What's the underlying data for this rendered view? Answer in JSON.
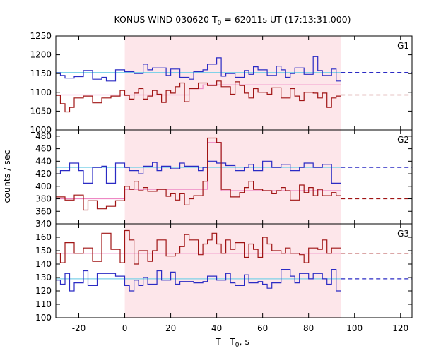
{
  "chart_data": {
    "type": "line",
    "title_main": "KONUS-WIND 030620 T",
    "title_sub": "0",
    "title_rest": " = 62011s UT (17:13:31.000)",
    "xlabel_main": "T - T",
    "xlabel_sub": "0",
    "xlabel_rest": ", s",
    "ylabel": "counts / sec",
    "xlim": [
      -30,
      125
    ],
    "xticks": [
      "-20",
      "0",
      "20",
      "40",
      "60",
      "80",
      "100",
      "120"
    ],
    "highlight_interval": [
      0,
      94
    ],
    "colors": {
      "blue": "#2b2bc4",
      "red": "#a01414",
      "cyan": "#7fd2e8",
      "pink": "#ee88c4",
      "shade": "#fde6ea"
    },
    "panels": [
      {
        "label": "G1",
        "ylim": [
          1000,
          1250
        ],
        "yticks": [
          "1250",
          "1200",
          "1150",
          "1100",
          "1050",
          "1000"
        ],
        "blue_level": 1153,
        "red_level": 1093,
        "blue_steps": {
          "x": [
            -30,
            -28,
            -26,
            -22,
            -18,
            -14,
            -10,
            -8,
            -4,
            0,
            4,
            8,
            10,
            12,
            18,
            20,
            24,
            28,
            30,
            34,
            36,
            40,
            42,
            44,
            48,
            52,
            54,
            56,
            58,
            62,
            66,
            68,
            70,
            72,
            74,
            78,
            82,
            84,
            86,
            90,
            92,
            94
          ],
          "y": [
            1152,
            1145,
            1138,
            1142,
            1158,
            1135,
            1140,
            1130,
            1160,
            1155,
            1150,
            1175,
            1160,
            1165,
            1145,
            1162,
            1140,
            1135,
            1155,
            1160,
            1175,
            1192,
            1143,
            1150,
            1140,
            1158,
            1148,
            1168,
            1160,
            1145,
            1170,
            1160,
            1140,
            1150,
            1165,
            1148,
            1195,
            1158,
            1145,
            1162,
            1130,
            1168
          ]
        },
        "red_steps": {
          "x": [
            -30,
            -28,
            -26,
            -24,
            -22,
            -18,
            -14,
            -10,
            -6,
            -2,
            0,
            2,
            4,
            6,
            8,
            10,
            12,
            14,
            16,
            18,
            20,
            22,
            24,
            26,
            28,
            32,
            36,
            40,
            42,
            46,
            48,
            50,
            52,
            54,
            56,
            58,
            62,
            64,
            68,
            72,
            74,
            76,
            78,
            82,
            84,
            86,
            88,
            90,
            92,
            94
          ],
          "y": [
            1092,
            1070,
            1048,
            1060,
            1085,
            1090,
            1072,
            1085,
            1090,
            1105,
            1092,
            1082,
            1098,
            1110,
            1082,
            1090,
            1105,
            1095,
            1073,
            1105,
            1098,
            1115,
            1125,
            1075,
            1110,
            1125,
            1118,
            1130,
            1115,
            1095,
            1128,
            1118,
            1098,
            1085,
            1110,
            1100,
            1095,
            1112,
            1085,
            1110,
            1090,
            1078,
            1100,
            1098,
            1085,
            1098,
            1060,
            1085,
            1090,
            1088
          ]
        },
        "pink_steps": {
          "x": [
            -30,
            0,
            28,
            34,
            94
          ],
          "y": [
            1093,
            1093,
            1110,
            1120,
            1118
          ]
        }
      },
      {
        "label": "G2",
        "ylim": [
          340,
          490
        ],
        "yticks": [
          "480",
          "460",
          "440",
          "420",
          "400",
          "380",
          "360",
          "340"
        ],
        "blue_level": 430,
        "red_level": 380,
        "blue_steps": {
          "x": [
            -30,
            -28,
            -24,
            -20,
            -18,
            -14,
            -10,
            -8,
            -4,
            0,
            2,
            6,
            8,
            12,
            14,
            16,
            20,
            24,
            26,
            30,
            32,
            34,
            36,
            40,
            44,
            48,
            52,
            54,
            56,
            60,
            64,
            68,
            72,
            76,
            78,
            82,
            86,
            90,
            94
          ],
          "y": [
            420,
            425,
            437,
            425,
            405,
            430,
            432,
            405,
            437,
            430,
            425,
            420,
            432,
            438,
            425,
            432,
            428,
            437,
            432,
            432,
            425,
            430,
            440,
            437,
            433,
            425,
            430,
            435,
            425,
            440,
            430,
            435,
            425,
            430,
            437,
            430,
            435,
            405,
            433
          ]
        },
        "red_steps": {
          "x": [
            -30,
            -26,
            -22,
            -18,
            -16,
            -12,
            -8,
            -4,
            0,
            2,
            4,
            6,
            8,
            10,
            14,
            18,
            20,
            22,
            24,
            26,
            28,
            30,
            34,
            36,
            40,
            42,
            46,
            50,
            52,
            54,
            56,
            60,
            64,
            66,
            68,
            70,
            72,
            76,
            78,
            80,
            82,
            84,
            86,
            90,
            92,
            94
          ],
          "y": [
            383,
            378,
            386,
            362,
            377,
            364,
            368,
            377,
            400,
            395,
            408,
            393,
            398,
            392,
            395,
            384,
            388,
            378,
            388,
            370,
            380,
            385,
            408,
            477,
            470,
            395,
            383,
            390,
            398,
            408,
            395,
            393,
            388,
            393,
            398,
            393,
            378,
            402,
            390,
            398,
            385,
            395,
            385,
            390,
            385,
            380
          ]
        },
        "pink_steps": {
          "x": [
            -30,
            0,
            30,
            36,
            42,
            94
          ],
          "y": [
            380,
            395,
            395,
            470,
            393,
            393
          ]
        }
      },
      {
        "label": "G3",
        "ylim": [
          100,
          170
        ],
        "yticks": [
          "160",
          "150",
          "140",
          "130",
          "120",
          "110",
          "100"
        ],
        "blue_level": 129,
        "red_level": 148,
        "blue_steps": {
          "x": [
            -30,
            -28,
            -26,
            -24,
            -22,
            -18,
            -16,
            -12,
            -8,
            -4,
            0,
            2,
            4,
            6,
            8,
            10,
            14,
            16,
            20,
            22,
            24,
            28,
            30,
            34,
            36,
            40,
            44,
            46,
            48,
            52,
            54,
            58,
            60,
            62,
            64,
            68,
            72,
            74,
            76,
            80,
            82,
            86,
            88,
            90,
            92,
            94
          ],
          "y": [
            128,
            125,
            133,
            120,
            126,
            135,
            124,
            133,
            133,
            131,
            124,
            120,
            128,
            124,
            130,
            125,
            135,
            128,
            134,
            125,
            127,
            127,
            126,
            127,
            131,
            128,
            133,
            126,
            124,
            132,
            126,
            127,
            125,
            122,
            126,
            136,
            131,
            126,
            133,
            129,
            133,
            129,
            125,
            136,
            120,
            114
          ]
        },
        "red_steps": {
          "x": [
            -30,
            -28,
            -26,
            -22,
            -18,
            -14,
            -10,
            -6,
            -2,
            0,
            2,
            4,
            6,
            10,
            12,
            14,
            18,
            22,
            24,
            26,
            28,
            32,
            34,
            36,
            38,
            40,
            42,
            44,
            46,
            48,
            52,
            54,
            56,
            58,
            60,
            62,
            64,
            68,
            70,
            72,
            76,
            78,
            80,
            84,
            86,
            88,
            90,
            94
          ],
          "y": [
            148,
            141,
            156,
            148,
            152,
            142,
            163,
            151,
            141,
            165,
            158,
            140,
            150,
            142,
            150,
            158,
            146,
            148,
            153,
            162,
            158,
            147,
            155,
            158,
            163,
            155,
            148,
            158,
            151,
            156,
            145,
            155,
            151,
            145,
            160,
            155,
            150,
            148,
            152,
            148,
            147,
            141,
            152,
            151,
            158,
            148,
            152,
            150
          ]
        },
        "pink_steps": {
          "x": [
            -30,
            94
          ],
          "y": [
            148,
            148
          ]
        }
      }
    ]
  }
}
